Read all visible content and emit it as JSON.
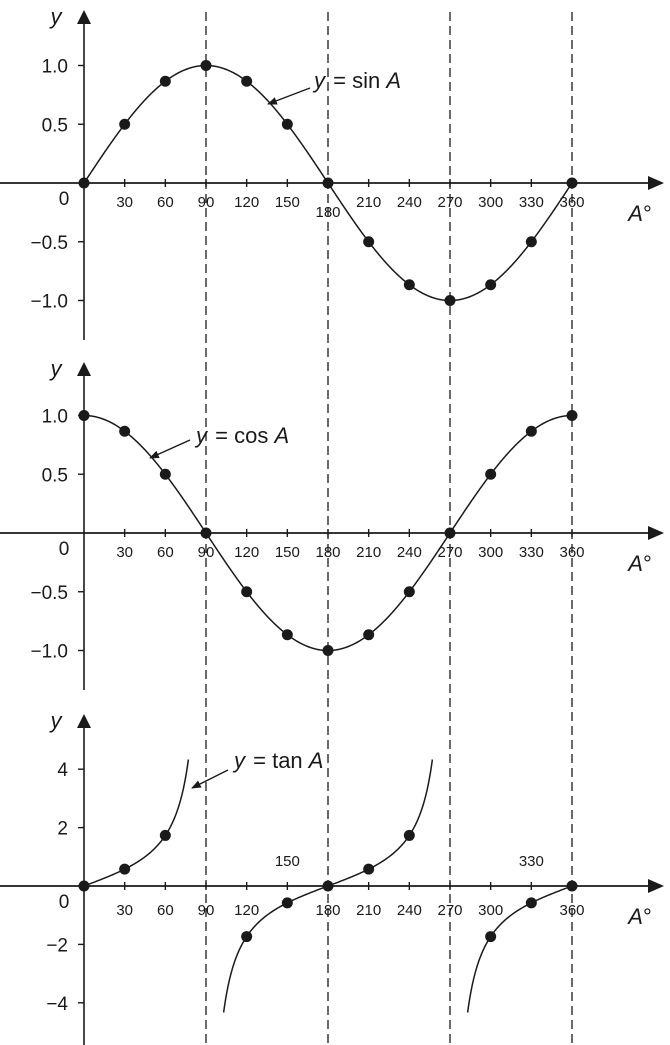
{
  "chart_data": [
    {
      "type": "line",
      "function": "sin",
      "label_y": "y",
      "label_eq": "=",
      "label_fn": "sin",
      "label_var": "A",
      "ylabel": "y",
      "xlabel": "A",
      "xlabel_unit": "°",
      "xlim": [
        0,
        360
      ],
      "ylim": [
        -1.0,
        1.0
      ],
      "x_ticks": [
        "30",
        "60",
        "90",
        "120",
        "150",
        "180",
        "210",
        "240",
        "270",
        "300",
        "330",
        "360"
      ],
      "origin_label": "0",
      "y_ticks": [
        "1.0",
        "0.5",
        "−0.5",
        "−1.0"
      ],
      "y_tick_values": [
        1.0,
        0.5,
        -0.5,
        -1.0
      ],
      "points": {
        "x": [
          0,
          30,
          60,
          90,
          120,
          150,
          180,
          210,
          240,
          270,
          300,
          330,
          360
        ],
        "y": [
          0,
          0.5,
          0.866,
          1.0,
          0.866,
          0.5,
          0,
          -0.5,
          -0.866,
          -1.0,
          -0.866,
          -0.5,
          0
        ]
      }
    },
    {
      "type": "line",
      "function": "cos",
      "label_y": "y",
      "label_eq": "=",
      "label_fn": "cos",
      "label_var": "A",
      "ylabel": "y",
      "xlabel": "A",
      "xlabel_unit": "°",
      "xlim": [
        0,
        360
      ],
      "ylim": [
        -1.0,
        1.0
      ],
      "x_ticks": [
        "30",
        "60",
        "90",
        "120",
        "150",
        "180",
        "210",
        "240",
        "270",
        "300",
        "330",
        "360"
      ],
      "origin_label": "0",
      "y_ticks": [
        "1.0",
        "0.5",
        "−0.5",
        "−1.0"
      ],
      "y_tick_values": [
        1.0,
        0.5,
        -0.5,
        -1.0
      ],
      "points": {
        "x": [
          0,
          30,
          60,
          90,
          120,
          150,
          180,
          210,
          240,
          270,
          300,
          330,
          360
        ],
        "y": [
          1.0,
          0.866,
          0.5,
          0,
          -0.5,
          -0.866,
          -1.0,
          -0.866,
          -0.5,
          0,
          0.5,
          0.866,
          1.0
        ]
      }
    },
    {
      "type": "line",
      "function": "tan",
      "label_y": "y",
      "label_eq": "=",
      "label_fn": "tan",
      "label_var": "A",
      "ylabel": "y",
      "xlabel": "A",
      "xlabel_unit": "°",
      "xlim": [
        0,
        360
      ],
      "ylim": [
        -4,
        4
      ],
      "x_ticks": [
        "30",
        "60",
        "90",
        "120",
        "150",
        "180",
        "210",
        "240",
        "270",
        "300",
        "330",
        "360"
      ],
      "origin_label": "0",
      "y_ticks": [
        "4",
        "2",
        "−2",
        "−4"
      ],
      "y_tick_values": [
        4,
        2,
        -2,
        -4
      ],
      "points": {
        "x": [
          0,
          30,
          60,
          120,
          150,
          180,
          210,
          240,
          300,
          330,
          360
        ],
        "y": [
          0,
          0.577,
          1.732,
          -1.732,
          -0.577,
          0,
          0.577,
          1.732,
          -1.732,
          -0.577,
          0
        ]
      }
    }
  ],
  "guide_lines": {
    "x_values": [
      90,
      180,
      270,
      360
    ],
    "style": "dashed"
  }
}
